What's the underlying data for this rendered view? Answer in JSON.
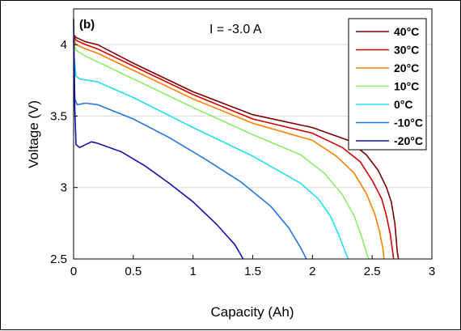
{
  "chart_data": {
    "type": "line",
    "panel_label": "(b)",
    "annotation": "I = -3.0 A",
    "xlabel": "Capacity (Ah)",
    "ylabel": "Voltage (V)",
    "xlim": [
      0,
      3
    ],
    "ylim": [
      2.5,
      4.25
    ],
    "xticks": [
      0,
      0.5,
      1,
      1.5,
      2,
      2.5,
      3
    ],
    "xtick_labels": [
      "0",
      "0.5",
      "1",
      "1.5",
      "2",
      "2.5",
      "3"
    ],
    "yticks": [
      2.5,
      3,
      3.5,
      4
    ],
    "ytick_labels": [
      "2.5",
      "3",
      "3.5",
      "4"
    ],
    "grid": "horizontal",
    "legend_position": "top-right",
    "series": [
      {
        "name": "40°C",
        "color": "#7a0000",
        "x": [
          0,
          0.02,
          0.1,
          0.2,
          0.5,
          1.0,
          1.5,
          2.0,
          2.3,
          2.45,
          2.55,
          2.62,
          2.66,
          2.69,
          2.7,
          2.71,
          2.72
        ],
        "y": [
          4.07,
          4.05,
          4.02,
          4.0,
          3.87,
          3.67,
          3.51,
          3.42,
          3.33,
          3.23,
          3.12,
          3.0,
          2.9,
          2.75,
          2.65,
          2.55,
          2.5
        ]
      },
      {
        "name": "30°C",
        "color": "#d00000",
        "x": [
          0,
          0.02,
          0.1,
          0.2,
          0.5,
          1.0,
          1.5,
          2.0,
          2.25,
          2.4,
          2.5,
          2.58,
          2.62,
          2.65,
          2.67,
          2.68
        ],
        "y": [
          4.06,
          4.03,
          4.0,
          3.97,
          3.85,
          3.65,
          3.48,
          3.38,
          3.28,
          3.18,
          3.05,
          2.92,
          2.8,
          2.68,
          2.56,
          2.5
        ]
      },
      {
        "name": "20°C",
        "color": "#ff7f00",
        "x": [
          0,
          0.02,
          0.1,
          0.2,
          0.5,
          1.0,
          1.5,
          2.0,
          2.2,
          2.35,
          2.45,
          2.52,
          2.56,
          2.59,
          2.6
        ],
        "y": [
          4.04,
          4.0,
          3.97,
          3.94,
          3.82,
          3.62,
          3.45,
          3.33,
          3.22,
          3.1,
          2.96,
          2.82,
          2.7,
          2.57,
          2.5
        ]
      },
      {
        "name": "10°C",
        "color": "#88ee66",
        "x": [
          0,
          0.02,
          0.1,
          0.2,
          0.5,
          1.0,
          1.5,
          1.9,
          2.1,
          2.25,
          2.35,
          2.41,
          2.45,
          2.47
        ],
        "y": [
          4.02,
          3.96,
          3.92,
          3.88,
          3.76,
          3.56,
          3.37,
          3.23,
          3.1,
          2.95,
          2.8,
          2.66,
          2.55,
          2.5
        ]
      },
      {
        "name": "0°C",
        "color": "#22ddee",
        "x": [
          0,
          0.02,
          0.05,
          0.2,
          0.5,
          1.0,
          1.5,
          1.9,
          2.05,
          2.15,
          2.22,
          2.27,
          2.3
        ],
        "y": [
          3.95,
          3.78,
          3.76,
          3.74,
          3.63,
          3.42,
          3.22,
          3.03,
          2.92,
          2.8,
          2.67,
          2.56,
          2.5
        ]
      },
      {
        "name": "-10°C",
        "color": "#2277dd",
        "x": [
          0,
          0.01,
          0.03,
          0.1,
          0.2,
          0.5,
          0.8,
          1.1,
          1.4,
          1.65,
          1.8,
          1.9,
          1.95
        ],
        "y": [
          4.05,
          3.62,
          3.58,
          3.59,
          3.58,
          3.48,
          3.35,
          3.2,
          3.04,
          2.87,
          2.72,
          2.58,
          2.5
        ]
      },
      {
        "name": "-20°C",
        "color": "#1111aa",
        "x": [
          0,
          0.01,
          0.02,
          0.05,
          0.1,
          0.15,
          0.2,
          0.4,
          0.6,
          0.8,
          1.0,
          1.2,
          1.35,
          1.42
        ],
        "y": [
          4.18,
          3.55,
          3.3,
          3.28,
          3.3,
          3.32,
          3.31,
          3.25,
          3.15,
          3.03,
          2.9,
          2.74,
          2.6,
          2.5
        ]
      }
    ]
  }
}
